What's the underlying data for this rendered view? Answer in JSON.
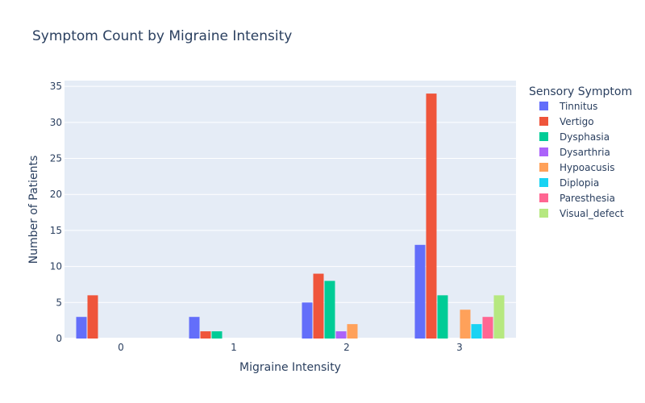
{
  "chart_data": {
    "type": "bar",
    "title": "Symptom Count by Migraine Intensity",
    "xlabel": "Migraine Intensity",
    "ylabel": "Number of Patients",
    "categories": [
      "0",
      "1",
      "2",
      "3"
    ],
    "ylim": [
      0,
      35.8
    ],
    "yticks": [
      0,
      5,
      10,
      15,
      20,
      25,
      30,
      35
    ],
    "grid": true,
    "legend_title": "Sensory Symptom",
    "legend_position": "right",
    "series": [
      {
        "name": "Tinnitus",
        "color": "#636efa",
        "values": [
          3,
          3,
          5,
          13
        ]
      },
      {
        "name": "Vertigo",
        "color": "#ef553b",
        "values": [
          6,
          1,
          9,
          34
        ]
      },
      {
        "name": "Dysphasia",
        "color": "#00cc96",
        "values": [
          0,
          1,
          8,
          6
        ]
      },
      {
        "name": "Dysarthria",
        "color": "#ab63fa",
        "values": [
          0,
          0,
          1,
          0
        ]
      },
      {
        "name": "Hypoacusis",
        "color": "#ffa15a",
        "values": [
          0,
          0,
          2,
          4
        ]
      },
      {
        "name": "Diplopia",
        "color": "#19d3f3",
        "values": [
          0,
          0,
          0,
          2
        ]
      },
      {
        "name": "Paresthesia",
        "color": "#ff6692",
        "values": [
          0,
          0,
          0,
          3
        ]
      },
      {
        "name": "Visual_defect",
        "color": "#b6e880",
        "values": [
          0,
          0,
          0,
          6
        ]
      }
    ]
  }
}
